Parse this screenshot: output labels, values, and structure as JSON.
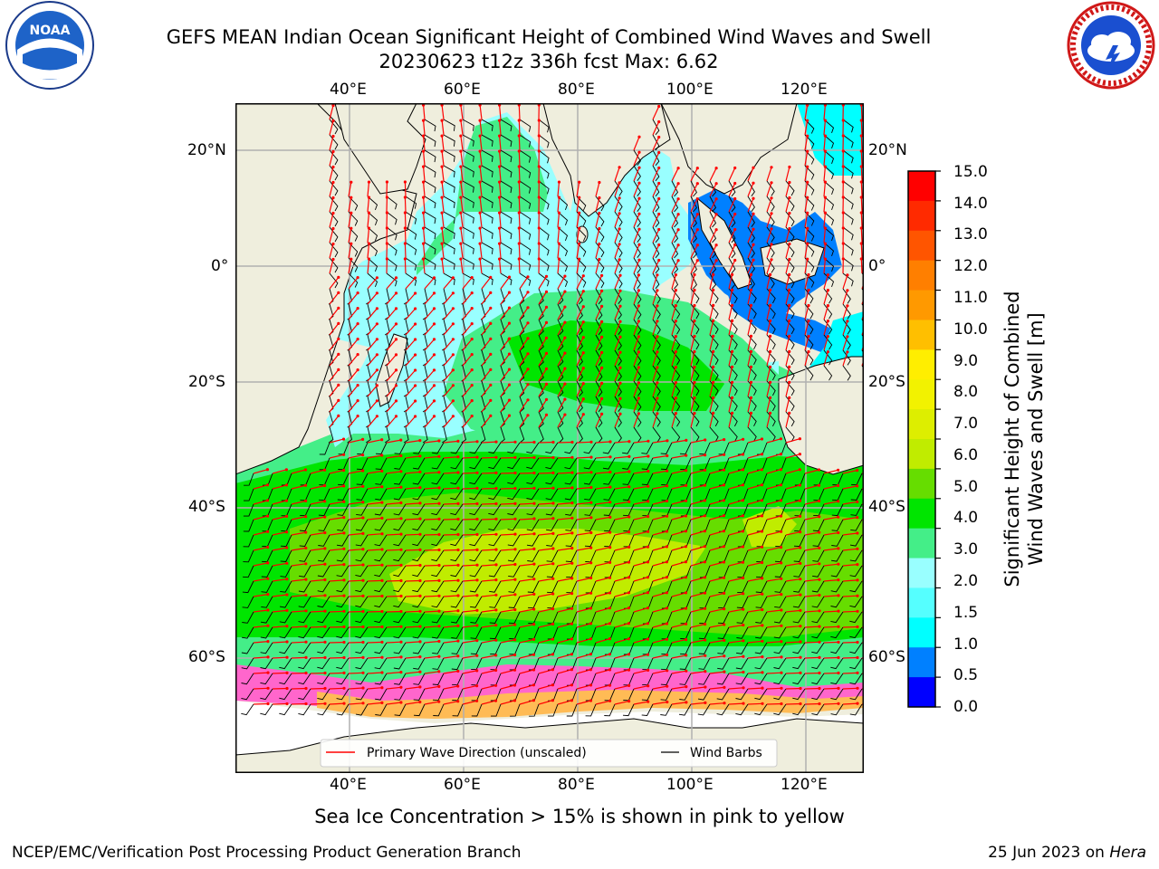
{
  "title": {
    "line1": "GEFS MEAN Indian Ocean Significant Height of Combined Wind Waves and Swell",
    "line2": "20230623 t12z 336h fcst   Max: 6.62"
  },
  "map": {
    "lon_ticks_top": [
      "40°E",
      "60°E",
      "80°E",
      "100°E",
      "120°E"
    ],
    "lon_ticks_bottom": [
      "40°E",
      "60°E",
      "80°E",
      "100°E",
      "120°E"
    ],
    "lat_ticks_left": [
      "20°N",
      "0°",
      "20°S",
      "40°S",
      "60°S"
    ],
    "lat_ticks_right": [
      "20°N",
      "0°",
      "20°S",
      "40°S",
      "60°S"
    ],
    "legend": {
      "primary_wave": "Primary Wave Direction (unscaled)",
      "wind_barbs": "Wind Barbs"
    },
    "colors": {
      "land": "#efeedd",
      "wave_arrow": "#ff0000",
      "barb": "#000000"
    }
  },
  "colorbar": {
    "label_line1": "Significant Height of Combined",
    "label_line2": "Wind Waves and Swell [m]",
    "ticks": [
      "15.0",
      "14.0",
      "13.0",
      "12.0",
      "11.0",
      "10.0",
      "9.0",
      "8.0",
      "7.0",
      "6.0",
      "5.0",
      "4.0",
      "3.0",
      "2.0",
      "1.5",
      "1.0",
      "0.5",
      "0.0"
    ],
    "colors_top_to_bottom": [
      "#ff0000",
      "#ff2a00",
      "#ff5500",
      "#ff7f00",
      "#ff9900",
      "#ffbf00",
      "#ffee00",
      "#f2f200",
      "#ddee00",
      "#c0ec00",
      "#66dd00",
      "#00e500",
      "#44ee88",
      "#99ffff",
      "#55ffff",
      "#00ffff",
      "#0080ff",
      "#0000ff"
    ]
  },
  "ice_note": "Sea Ice Concentration > 15% is shown in pink to yellow",
  "footer": {
    "left": "NCEP/EMC/Verification Post Processing Product Generation Branch",
    "right_prefix": "25 Jun 2023 on ",
    "right_host": "Hera"
  },
  "logos": {
    "left": "noaa-logo",
    "left_text": "NOAA",
    "right": "nws-logo",
    "right_text": "NATIONAL WEATHER SERVICE"
  }
}
